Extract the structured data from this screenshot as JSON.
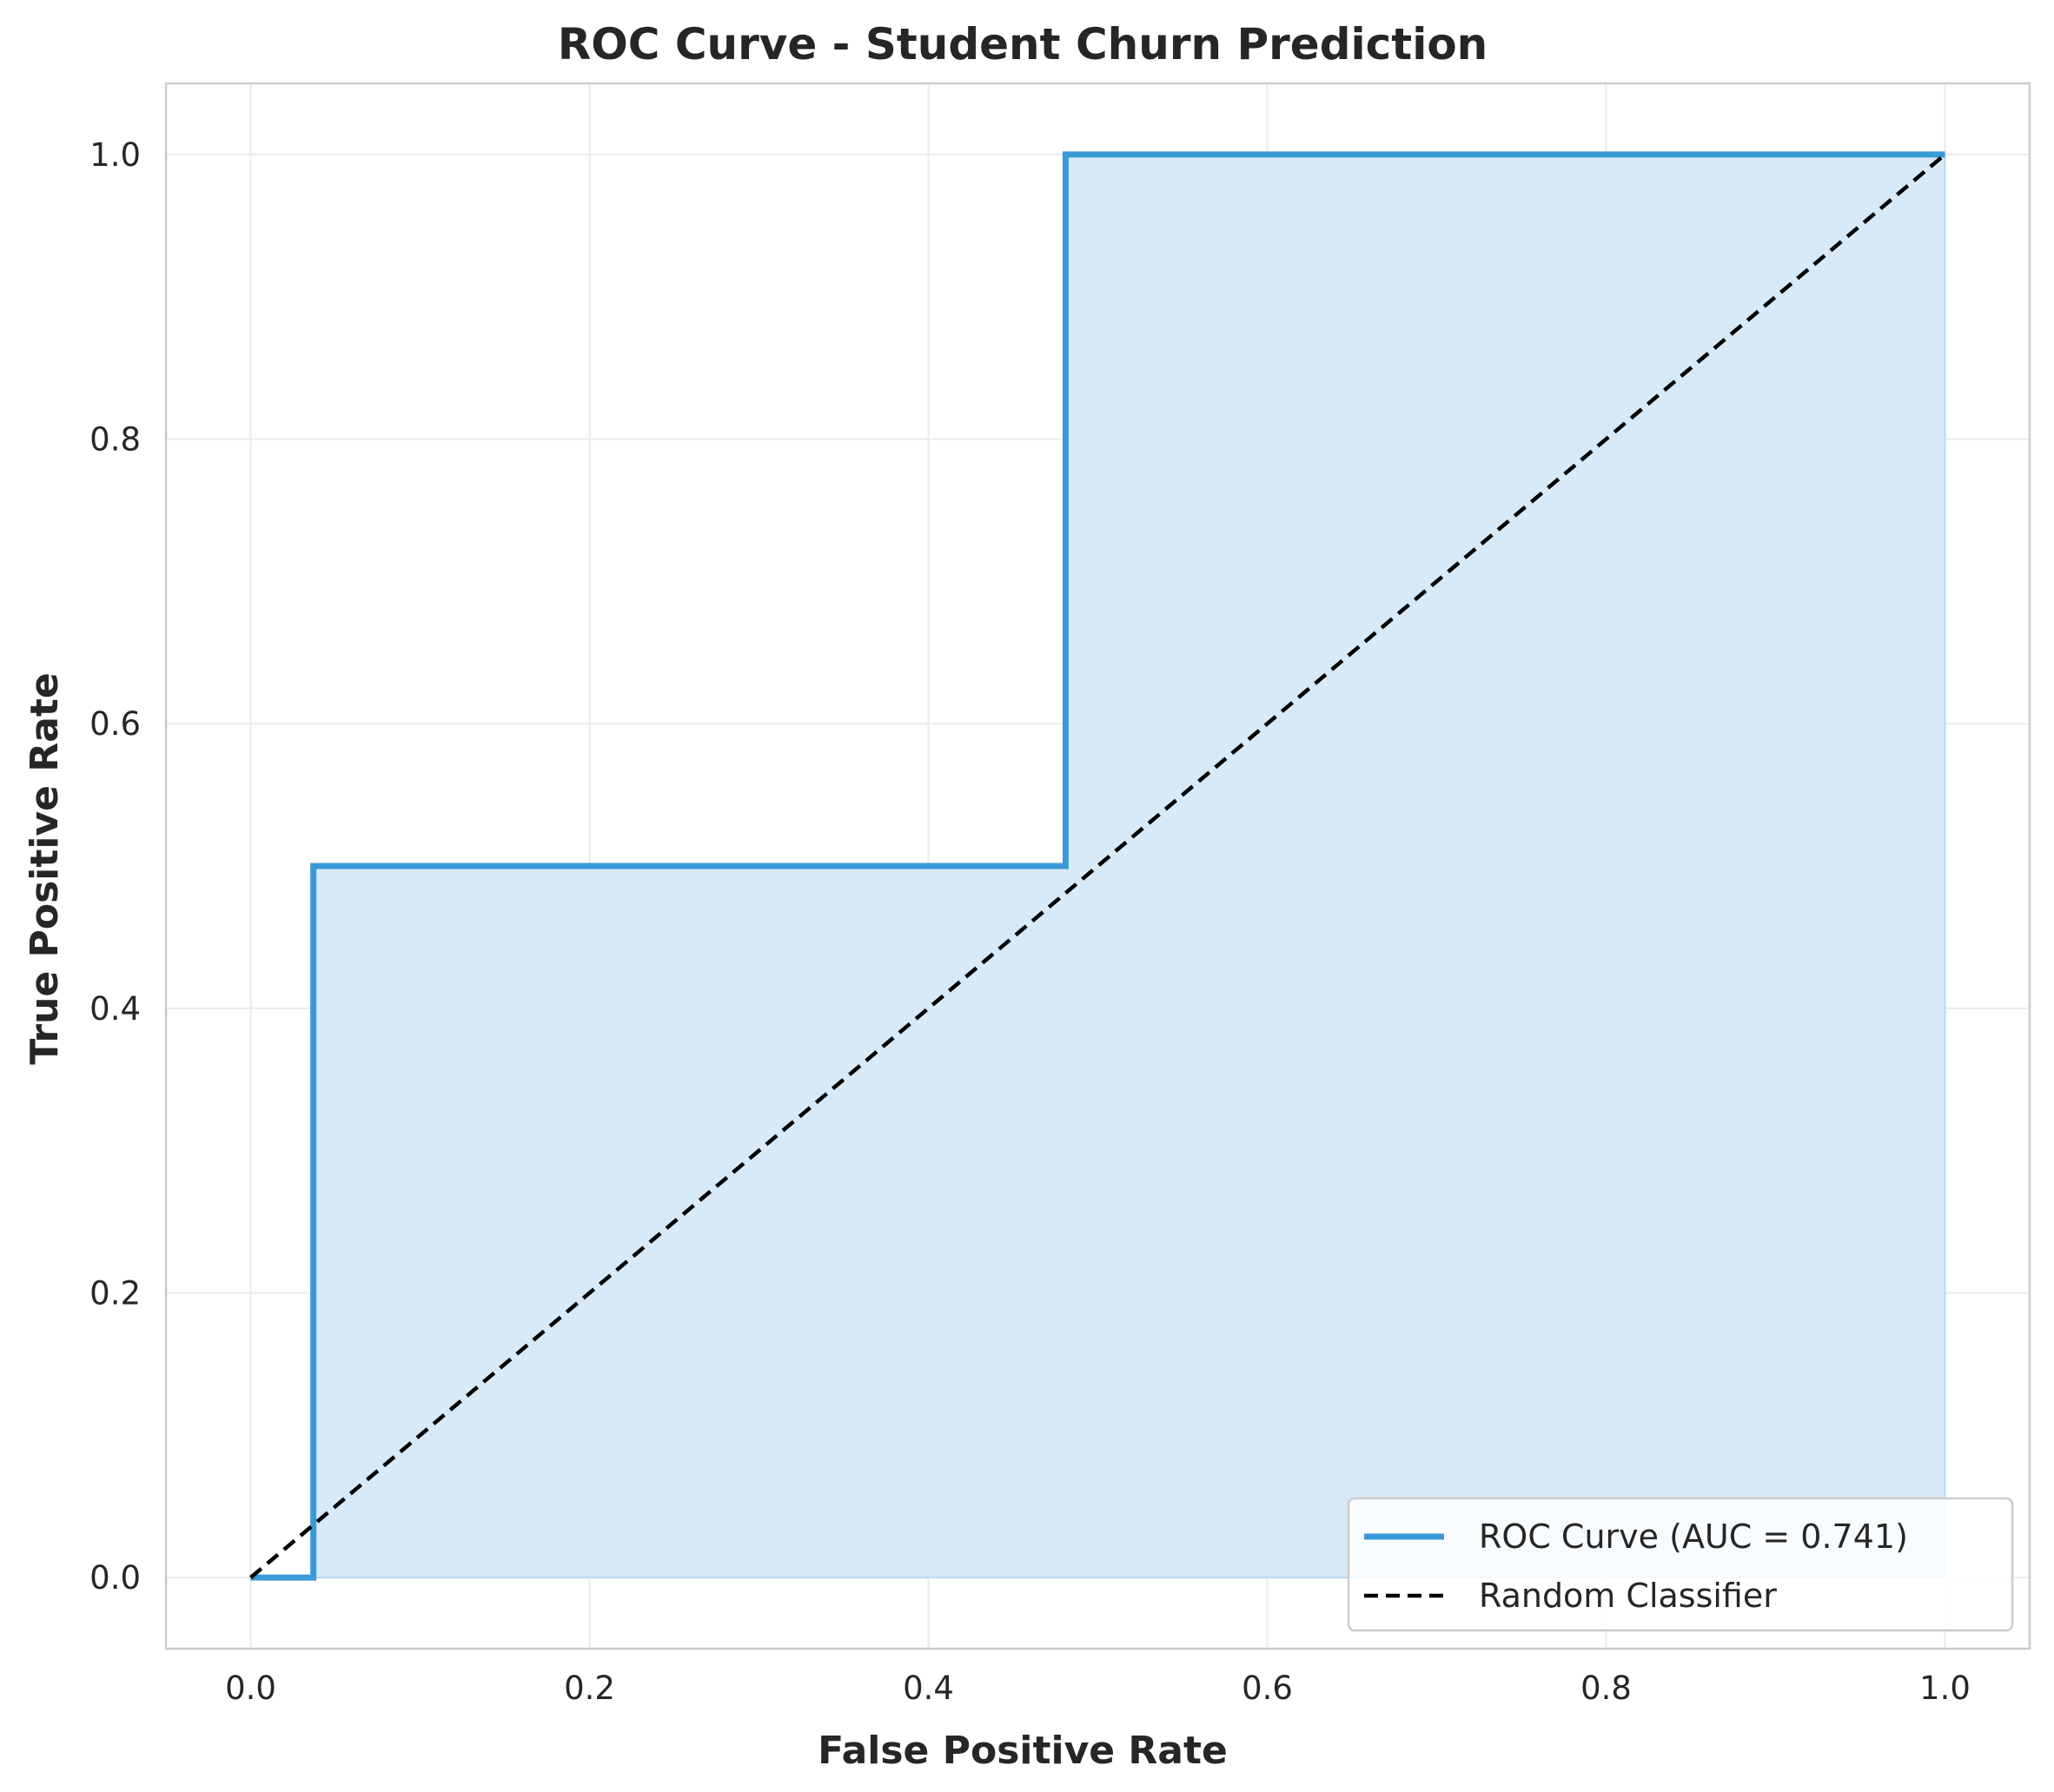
{
  "chart_data": {
    "type": "line",
    "title": "ROC Curve - Student Churn Prediction",
    "xlabel": "False Positive Rate",
    "ylabel": "True Positive Rate",
    "xlim": [
      -0.05,
      1.05
    ],
    "ylim": [
      -0.05,
      1.05
    ],
    "xticks": [
      0.0,
      0.2,
      0.4,
      0.6,
      0.8,
      1.0
    ],
    "yticks": [
      0.0,
      0.2,
      0.4,
      0.6,
      0.8,
      1.0
    ],
    "xtick_labels": [
      "0.0",
      "0.2",
      "0.4",
      "0.6",
      "0.8",
      "1.0"
    ],
    "ytick_labels": [
      "0.0",
      "0.2",
      "0.4",
      "0.6",
      "0.8",
      "1.0"
    ],
    "grid": true,
    "legend_position": "lower-right",
    "series": [
      {
        "name": "ROC Curve (AUC = 0.741)",
        "style": "solid",
        "color": "#3a9ad9",
        "fill": "#d6e9f7",
        "x": [
          0.0,
          0.037,
          0.037,
          0.481,
          0.481,
          1.0
        ],
        "y": [
          0.0,
          0.0,
          0.5,
          0.5,
          1.0,
          1.0
        ]
      },
      {
        "name": "Random Classifier",
        "style": "dashed",
        "color": "#000000",
        "x": [
          0.0,
          1.0
        ],
        "y": [
          0.0,
          1.0
        ]
      }
    ]
  }
}
